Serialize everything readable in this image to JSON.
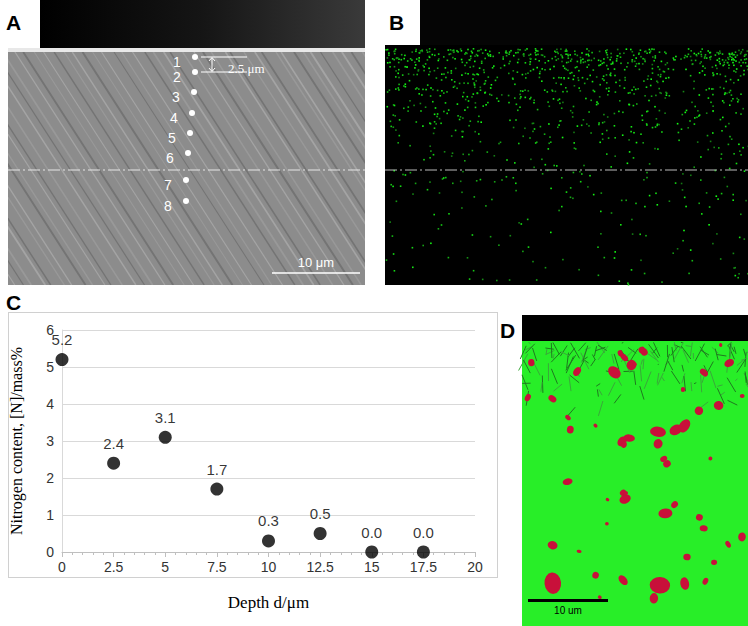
{
  "panel_A": {
    "letter": "A",
    "point_labels": [
      "1",
      "2",
      "3",
      "4",
      "5",
      "6",
      "7",
      "8"
    ],
    "spacing_label": "2.5 μm",
    "scale_bar_label": "10 μm"
  },
  "panel_B": {
    "letter": "B"
  },
  "panel_C": {
    "letter": "C"
  },
  "panel_D": {
    "letter": "D",
    "scale_bar_label": "10 um"
  },
  "chart_data": {
    "type": "scatter",
    "x": [
      0,
      2.5,
      5,
      7.5,
      10,
      12.5,
      15,
      17.5
    ],
    "values": [
      5.2,
      2.4,
      3.1,
      1.7,
      0.3,
      0.5,
      0,
      0
    ],
    "value_labels": [
      "5.2",
      "2.4",
      "3.1",
      "1.7",
      "0.3",
      "0.5",
      "0.0",
      "0.0"
    ],
    "x_label": "Depth d/μm",
    "y_label": "Nitrogen content, [N]/mass%",
    "xlim": [
      0,
      20
    ],
    "xticks": [
      0,
      2.5,
      5,
      7.5,
      10,
      12.5,
      15,
      17.5,
      20
    ],
    "ylim": [
      0,
      6
    ],
    "yticks": [
      0,
      1,
      2,
      3,
      4,
      5,
      6
    ],
    "grid": true,
    "data_labels": true,
    "marker": "circle",
    "color": "#000000"
  }
}
